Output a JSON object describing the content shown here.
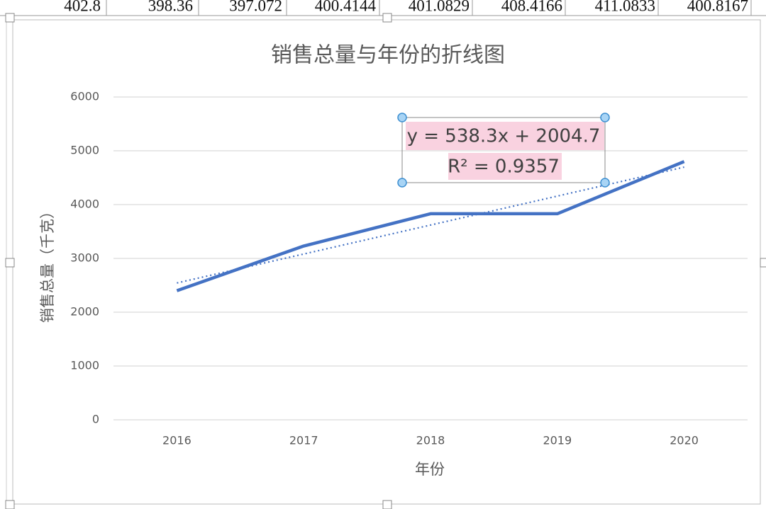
{
  "sheet_row": [
    "402.8",
    "398.36",
    "397.072",
    "400.4144",
    "401.0829",
    "408.4166",
    "411.0833",
    "400.8167"
  ],
  "chart_data": {
    "type": "line",
    "title": "销售总量与年份的折线图",
    "x_label": "年份",
    "y_label": "销售总量（千克）",
    "categories": [
      "2016",
      "2017",
      "2018",
      "2019",
      "2020"
    ],
    "series": [
      {
        "name": "销售总量",
        "color": "#4472c4",
        "values": [
          2400,
          3230,
          3830,
          3830,
          4800
        ]
      }
    ],
    "ylim": [
      0,
      6000
    ],
    "yticks": [
      0,
      1000,
      2000,
      3000,
      4000,
      5000,
      6000
    ],
    "grid": true,
    "trendline": {
      "slope": 538.3,
      "intercept": 2004.7,
      "equation": "y = 538.3x + 2004.7",
      "r2_label": "R² = 0.9357"
    }
  }
}
